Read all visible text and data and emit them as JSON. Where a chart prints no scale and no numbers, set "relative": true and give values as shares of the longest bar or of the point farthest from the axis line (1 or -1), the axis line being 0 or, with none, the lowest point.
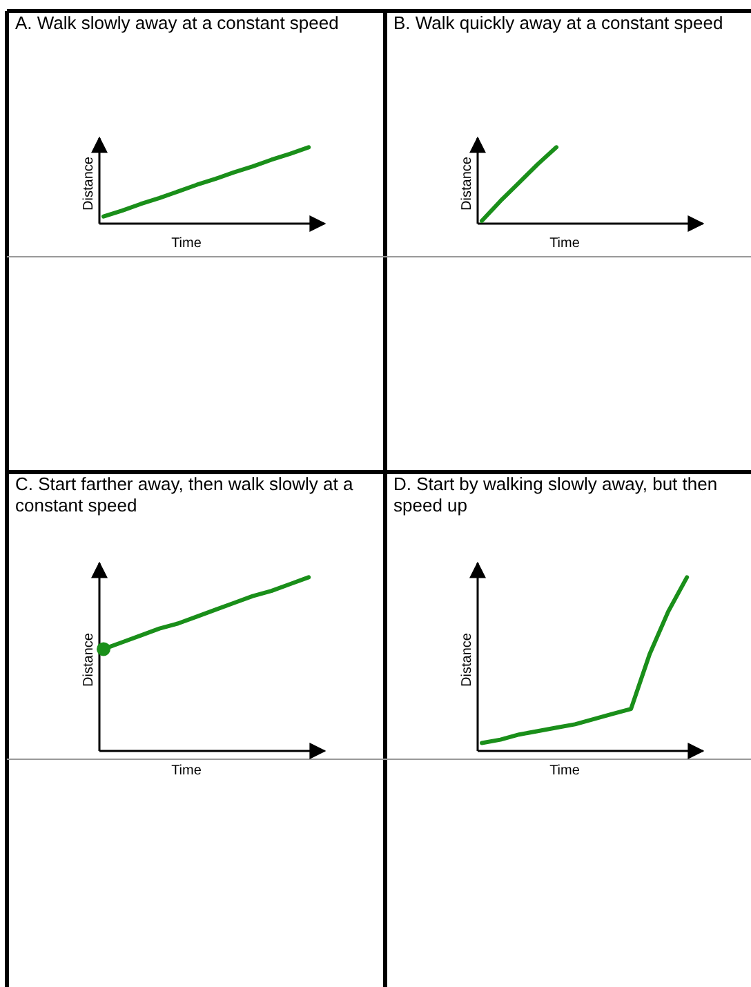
{
  "chart_data": [
    {
      "type": "line",
      "relative": true,
      "title": "A.  Walk slowly away at a constant speed",
      "xlabel": "Time",
      "ylabel": "Distance",
      "categories": [
        null,
        null,
        null,
        null,
        null,
        null,
        null,
        null,
        null,
        null,
        null,
        null
      ],
      "series": [
        {
          "color": "#1a8f1a",
          "values": [
            0.06,
            0.14,
            0.23,
            0.31,
            0.4,
            0.49,
            0.57,
            0.66,
            0.74,
            0.83,
            0.91,
            1
          ]
        }
      ]
    },
    {
      "type": "line",
      "relative": true,
      "title": "B.  Walk quickly away at a constant speed",
      "xlabel": "Time",
      "ylabel": "Distance",
      "categories": [
        null,
        null,
        null,
        null,
        null,
        null,
        null,
        null,
        null,
        null,
        null,
        null
      ],
      "series": [
        {
          "color": "#1a8f1a",
          "values": [
            0,
            0.27,
            0.52,
            0.77,
            1,
            null,
            null,
            null,
            null,
            null,
            null,
            null
          ]
        }
      ]
    },
    {
      "type": "line",
      "relative": true,
      "title": "C.  Start farther away, then walk slowly at a constant speed",
      "xlabel": "Time",
      "ylabel": "Distance",
      "categories": [
        null,
        null,
        null,
        null,
        null,
        null,
        null,
        null,
        null,
        null,
        null,
        null
      ],
      "series": [
        {
          "color": "#1a8f1a",
          "values": [
            0.58,
            0.62,
            0.66,
            0.7,
            0.73,
            0.77,
            0.81,
            0.85,
            0.89,
            0.92,
            0.96,
            1
          ]
        },
        {
          "type": "scatter",
          "marker": "circle",
          "color": "#1a8f1a",
          "values": [
            0.58,
            null,
            null,
            null,
            null,
            null,
            null,
            null,
            null,
            null,
            null,
            null
          ]
        }
      ]
    },
    {
      "type": "line",
      "relative": true,
      "title": "D.  Start by walking slowly away, but then speed up",
      "xlabel": "Time",
      "ylabel": "Distance",
      "categories": [
        null,
        null,
        null,
        null,
        null,
        null,
        null,
        null,
        null,
        null,
        null,
        null
      ],
      "series": [
        {
          "color": "#1a8f1a",
          "values": [
            0.03,
            0.05,
            0.08,
            0.1,
            0.12,
            0.14,
            0.17,
            0.2,
            0.23,
            0.55,
            0.8,
            1
          ]
        }
      ]
    }
  ]
}
